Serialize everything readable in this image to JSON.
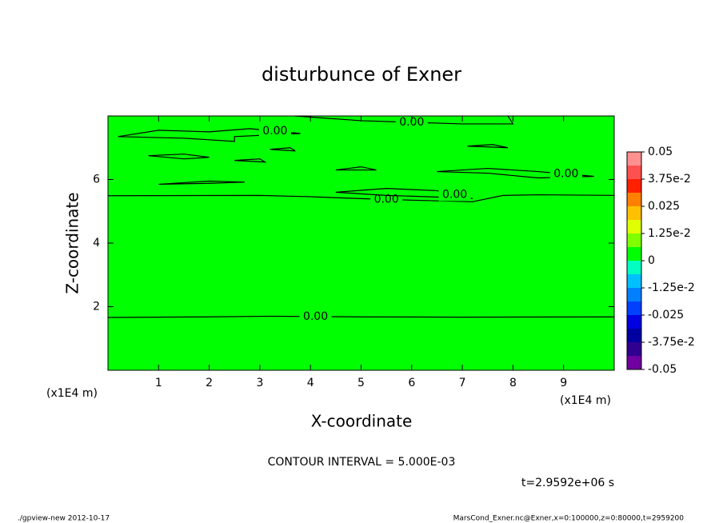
{
  "chart_data": {
    "type": "contour",
    "title": "disturbunce of Exner",
    "x_label": "X-coordinate",
    "y_label": "Z-coordinate",
    "x_unit": "(x1E4 m)",
    "xlim": [
      0,
      10
    ],
    "xticks": [
      1,
      2,
      3,
      4,
      5,
      6,
      7,
      8,
      9
    ],
    "ylim": [
      0,
      8
    ],
    "yticks": [
      2,
      4,
      6
    ],
    "field_color": "#00ff00",
    "contour_color": "#000000",
    "contours": [
      {
        "x": [
          0,
          2,
          3.2,
          5,
          7,
          10
        ],
        "y": [
          1.66,
          1.68,
          1.7,
          1.68,
          1.67,
          1.68
        ],
        "label": "0.00"
      },
      {
        "x": [
          0,
          3,
          4,
          5,
          6,
          7.2,
          7.8,
          8.5,
          10
        ],
        "y": [
          5.49,
          5.5,
          5.46,
          5.4,
          5.35,
          5.3,
          5.5,
          5.52,
          5.5
        ],
        "label": "0.00"
      },
      {
        "x": [
          4.5,
          5.5,
          6.5,
          7.2,
          6.5,
          5.5,
          4.5
        ],
        "y": [
          5.6,
          5.72,
          5.65,
          5.4,
          5.45,
          5.5,
          5.6
        ],
        "label": "0.00"
      },
      {
        "x": [
          0.2,
          1,
          2,
          2.8,
          3.8,
          2.5,
          2.5,
          1.5,
          0.2
        ],
        "y": [
          7.35,
          7.55,
          7.5,
          7.6,
          7.45,
          7.35,
          7.2,
          7.3,
          7.35
        ],
        "label": "0.00"
      },
      {
        "x": [
          0.8,
          1.5,
          2,
          1.5,
          0.8
        ],
        "y": [
          6.75,
          6.8,
          6.7,
          6.65,
          6.75
        ]
      },
      {
        "x": [
          1,
          2,
          2.7,
          2,
          1
        ],
        "y": [
          5.85,
          5.95,
          5.92,
          5.88,
          5.85
        ]
      },
      {
        "x": [
          2.5,
          3,
          3.1,
          2.5
        ],
        "y": [
          6.6,
          6.65,
          6.55,
          6.6
        ]
      },
      {
        "x": [
          3.2,
          3.6,
          3.7,
          3.2
        ],
        "y": [
          6.95,
          7.0,
          6.9,
          6.95
        ]
      },
      {
        "x": [
          4.5,
          5,
          5.3,
          4.5
        ],
        "y": [
          6.3,
          6.4,
          6.3,
          6.3
        ]
      },
      {
        "x": [
          7.1,
          7.6,
          7.9,
          7.1
        ],
        "y": [
          7.05,
          7.1,
          7.0,
          7.05
        ]
      },
      {
        "x": [
          6.5,
          7.5,
          8.5,
          9.6,
          8.5,
          7.5,
          6.5
        ],
        "y": [
          6.25,
          6.35,
          6.25,
          6.1,
          6.05,
          6.2,
          6.25
        ],
        "label": "0.00"
      },
      {
        "x": [
          3.7,
          5,
          7,
          8,
          7.9
        ],
        "y": [
          8,
          7.85,
          7.75,
          7.75,
          8
        ],
        "label": "0.00"
      }
    ],
    "colorbar": {
      "levels": [
        -0.05,
        -0.04375,
        -0.0375,
        -0.03125,
        -0.025,
        -0.01875,
        -0.0125,
        -0.00625,
        0,
        0.00625,
        0.0125,
        0.01875,
        0.025,
        0.03125,
        0.0375,
        0.04375,
        0.05
      ],
      "colors": [
        "#7000a0",
        "#300090",
        "#0000a0",
        "#0000e0",
        "#0040ff",
        "#0080ff",
        "#00c0ff",
        "#00ffc0",
        "#00ff00",
        "#80ff00",
        "#e0ff00",
        "#ffc000",
        "#ff8000",
        "#ff2000",
        "#ff5050",
        "#ff9090"
      ],
      "ticks": [
        -0.05,
        {
          "value": -0.0375,
          "label": "-3.75e-2"
        },
        -0.025,
        {
          "value": -0.0125,
          "label": "-1.25e-2"
        },
        0,
        {
          "value": 0.0125,
          "label": "1.25e-2"
        },
        0.025,
        {
          "value": 0.0375,
          "label": "3.75e-2"
        },
        0.05
      ]
    },
    "contour_interval": "CONTOUR INTERVAL = 5.000E-03",
    "time": "t=2.9592e+06 s",
    "footer_left": "./gpview-new  2012-10-17",
    "footer_right": "MarsCond_Exner.nc@Exner,x=0:100000,z=0:80000,t=2959200"
  }
}
